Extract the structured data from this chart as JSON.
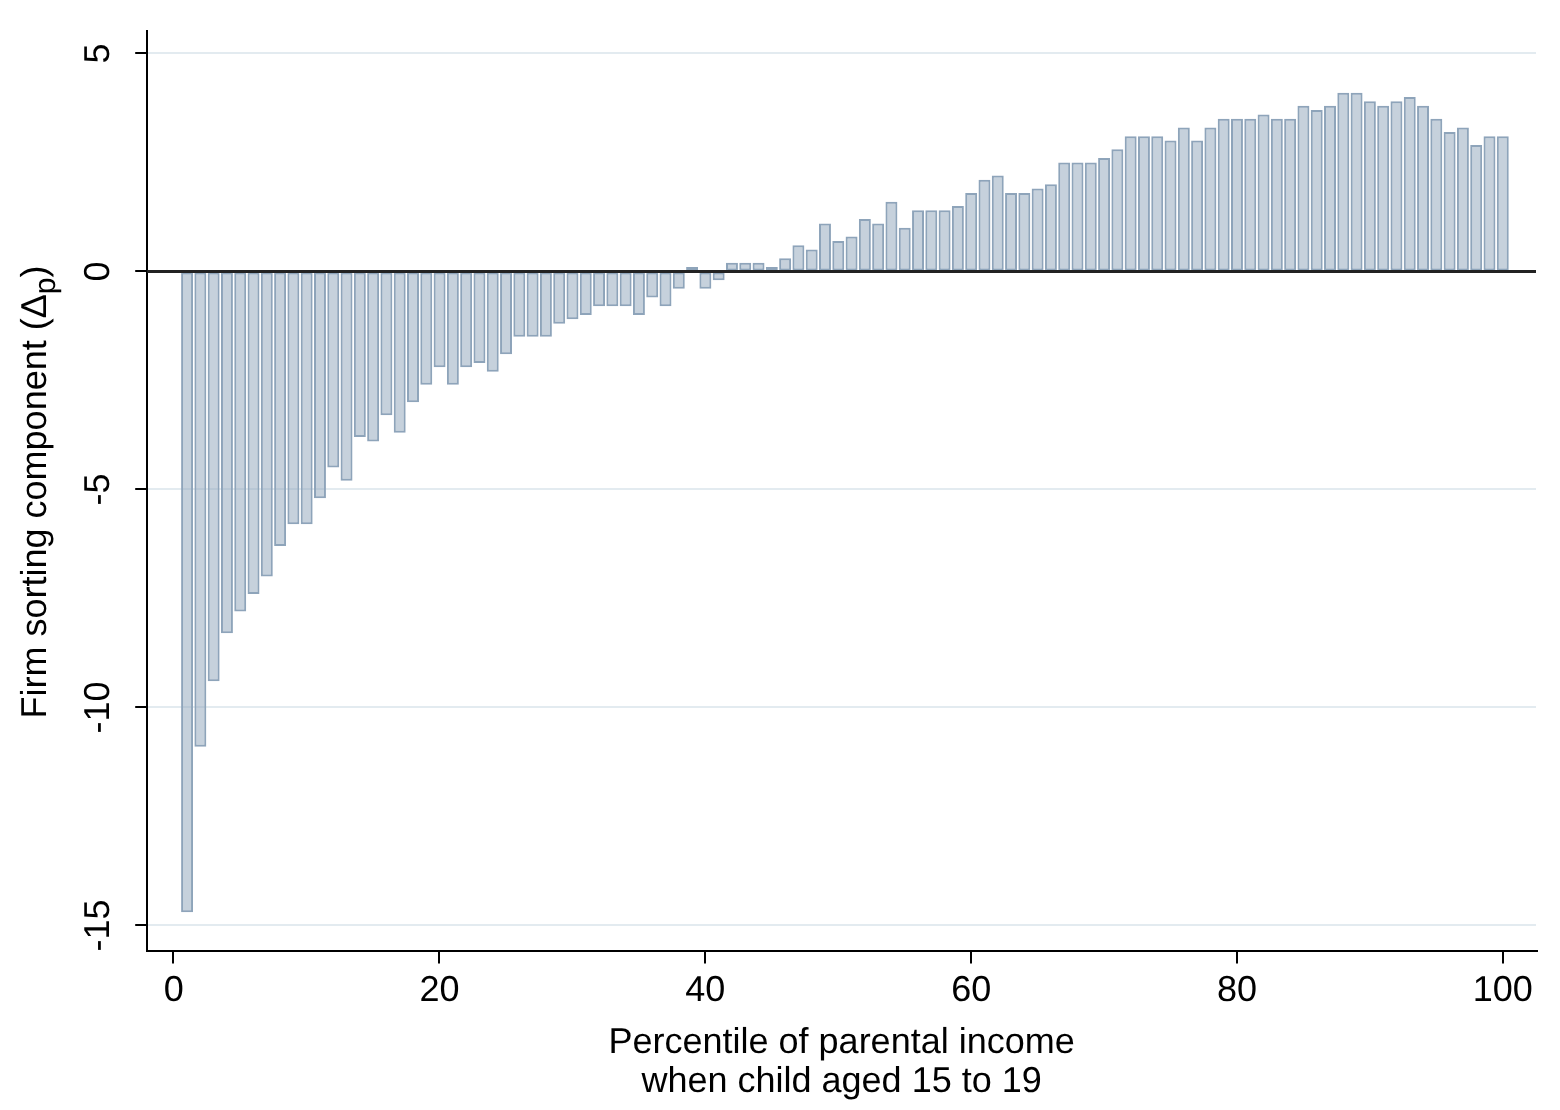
{
  "chart_data": {
    "type": "bar",
    "x": [
      1,
      2,
      3,
      4,
      5,
      6,
      7,
      8,
      9,
      10,
      11,
      12,
      13,
      14,
      15,
      16,
      17,
      18,
      19,
      20,
      21,
      22,
      23,
      24,
      25,
      26,
      27,
      28,
      29,
      30,
      31,
      32,
      33,
      34,
      35,
      36,
      37,
      38,
      39,
      40,
      41,
      42,
      43,
      44,
      45,
      46,
      47,
      48,
      49,
      50,
      51,
      52,
      53,
      54,
      55,
      56,
      57,
      58,
      59,
      60,
      61,
      62,
      63,
      64,
      65,
      66,
      67,
      68,
      69,
      70,
      71,
      72,
      73,
      74,
      75,
      76,
      77,
      78,
      79,
      80,
      81,
      82,
      83,
      84,
      85,
      86,
      87,
      88,
      89,
      90,
      91,
      92,
      93,
      94,
      95,
      96,
      97,
      98,
      99,
      100
    ],
    "values": [
      -14.7,
      -10.9,
      -9.4,
      -8.3,
      -7.8,
      -7.4,
      -7.0,
      -6.3,
      -5.8,
      -5.8,
      -5.2,
      -4.5,
      -4.8,
      -3.8,
      -3.9,
      -3.3,
      -3.7,
      -3.0,
      -2.6,
      -2.2,
      -2.6,
      -2.2,
      -2.1,
      -2.3,
      -1.9,
      -1.5,
      -1.5,
      -1.5,
      -1.2,
      -1.1,
      -1.0,
      -0.8,
      -0.8,
      -0.8,
      -1.0,
      -0.6,
      -0.8,
      -0.4,
      0.1,
      -0.4,
      -0.2,
      0.2,
      0.2,
      0.2,
      0.1,
      0.3,
      0.6,
      0.5,
      1.1,
      0.7,
      0.8,
      1.2,
      1.1,
      1.6,
      1.0,
      1.4,
      1.4,
      1.4,
      1.5,
      1.8,
      2.1,
      2.2,
      1.8,
      1.8,
      1.9,
      2.0,
      2.5,
      2.5,
      2.5,
      2.6,
      2.8,
      3.1,
      3.1,
      3.1,
      3.0,
      3.3,
      3.0,
      3.3,
      3.5,
      3.5,
      3.5,
      3.6,
      3.5,
      3.5,
      3.8,
      3.7,
      3.8,
      4.1,
      4.1,
      3.9,
      3.8,
      3.9,
      4.0,
      3.8,
      3.5,
      3.2,
      3.3,
      2.9,
      3.1,
      3.1
    ],
    "color": "#8ea4ba",
    "xlabel": "Percentile of parental income\nwhen child aged 15 to 19",
    "ylabel": "Firm sorting component (Δ$_{p}$)",
    "xlim": [
      -2,
      102.5
    ],
    "ylim": [
      -15.6,
      5.5
    ],
    "xticks": [
      0,
      20,
      40,
      60,
      80,
      100
    ],
    "yticks": [
      -15,
      -10,
      -5,
      0,
      5
    ],
    "grid": "y",
    "ref_lines": [
      {
        "axis": "y",
        "value": 0,
        "color": "#222222"
      }
    ]
  }
}
